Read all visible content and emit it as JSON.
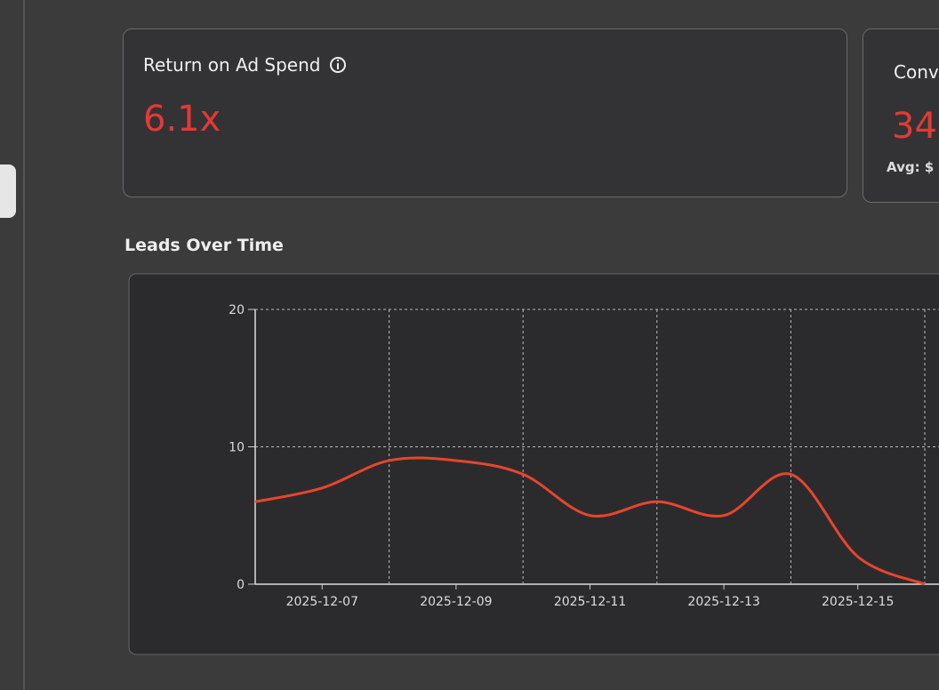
{
  "cards": [
    {
      "title": "Return on Ad Spend",
      "value": "6.1x"
    },
    {
      "title": "Conv",
      "value": "34",
      "note": "Avg: $"
    }
  ],
  "section_title": "Leads Over Time",
  "chart_data": {
    "type": "line",
    "categories": [
      null,
      "2025-12-07",
      null,
      "2025-12-09",
      null,
      "2025-12-11",
      null,
      "2025-12-13",
      null,
      "2025-12-15",
      null
    ],
    "series": [
      {
        "color": "#e8452c",
        "values": [
          6,
          7,
          9,
          9,
          8,
          5,
          6,
          5,
          8,
          2,
          0
        ]
      }
    ],
    "ylim": [
      0,
      20
    ],
    "yticks": [
      0,
      10,
      20
    ],
    "grid": true
  }
}
